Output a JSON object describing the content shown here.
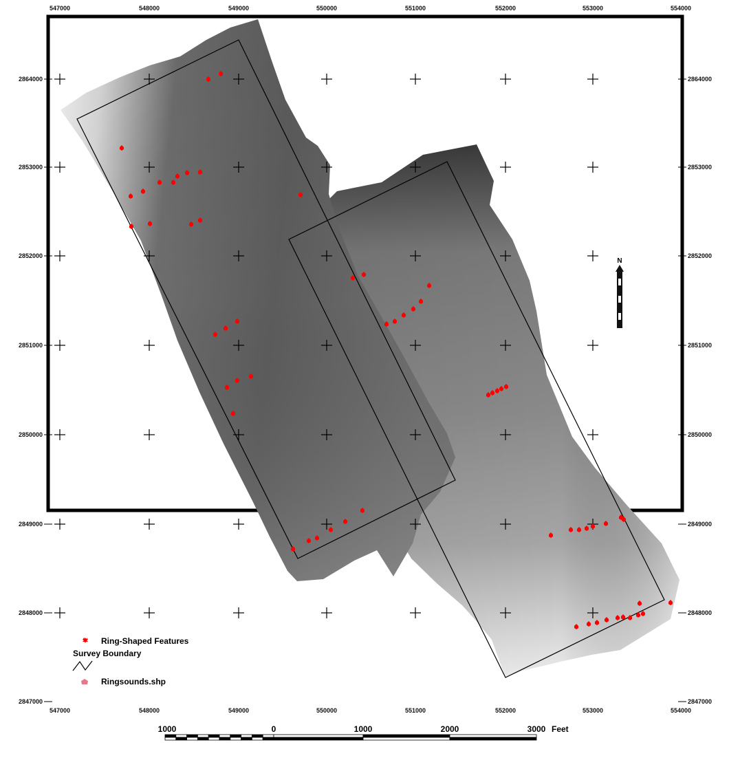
{
  "x_ticks": [
    "547000",
    "548000",
    "549000",
    "550000",
    "551000",
    "552000",
    "553000",
    "554000"
  ],
  "y_ticks": [
    "2864000",
    "2853000",
    "2852000",
    "2851000",
    "2850000",
    "2849000",
    "2848000",
    "2847000"
  ],
  "north_arrow": {
    "letter": "N"
  },
  "legend": {
    "features_label": "Ring-Shaped Features",
    "boundary_title": "Survey Boundary",
    "soundings_label": "Ringsounds.shp"
  },
  "scale_bar": {
    "labels": [
      "1000",
      "0",
      "1000",
      "2000",
      "3000"
    ],
    "unit": "Feet"
  },
  "colors": {
    "feature": "#ff0000",
    "soundings": "#e07a8c",
    "frame": "#000000"
  }
}
